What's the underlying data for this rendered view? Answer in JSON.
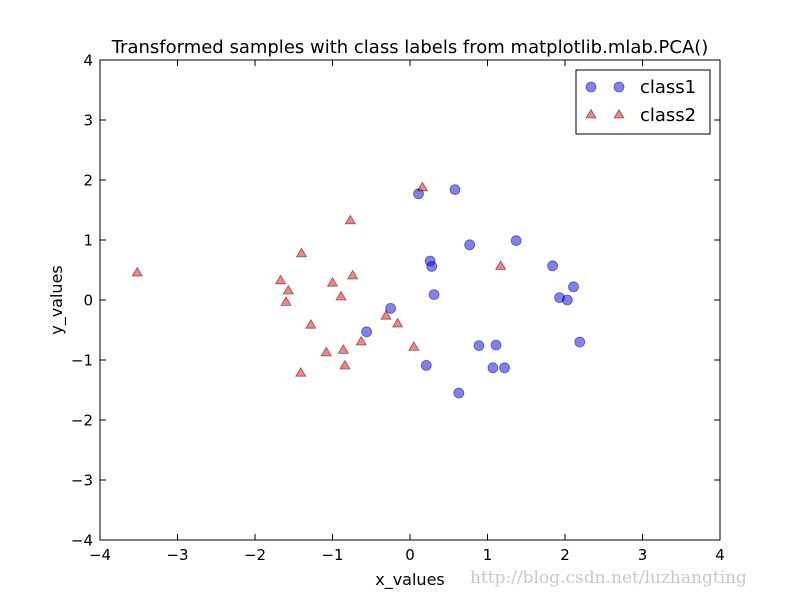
{
  "chart_data": {
    "type": "scatter",
    "title": "Transformed samples with class labels from matplotlib.mlab.PCA()",
    "xlabel": "x_values",
    "ylabel": "y_values",
    "xlim": [
      -4,
      4
    ],
    "ylim": [
      -4,
      4
    ],
    "xticks": [
      -4,
      -3,
      -2,
      -1,
      0,
      1,
      2,
      3,
      4
    ],
    "yticks": [
      -4,
      -3,
      -2,
      -1,
      0,
      1,
      2,
      3,
      4
    ],
    "tick_labels_x": [
      "−4",
      "−3",
      "−2",
      "−1",
      "0",
      "1",
      "2",
      "3",
      "4"
    ],
    "tick_labels_y": [
      "−4",
      "−3",
      "−2",
      "−1",
      "0",
      "1",
      "2",
      "3",
      "4"
    ],
    "grid": false,
    "legend_position": "top-right",
    "series": [
      {
        "name": "class1",
        "marker": "circle",
        "color": "#0000ff",
        "points": [
          [
            0.11,
            1.77
          ],
          [
            0.58,
            1.84
          ],
          [
            0.77,
            0.92
          ],
          [
            1.37,
            0.99
          ],
          [
            0.26,
            0.65
          ],
          [
            0.28,
            0.56
          ],
          [
            0.31,
            0.09
          ],
          [
            1.84,
            0.57
          ],
          [
            2.11,
            0.22
          ],
          [
            1.93,
            0.04
          ],
          [
            2.03,
            0.0
          ],
          [
            -0.25,
            -0.14
          ],
          [
            -0.56,
            -0.53
          ],
          [
            0.89,
            -0.76
          ],
          [
            1.11,
            -0.75
          ],
          [
            2.19,
            -0.7
          ],
          [
            0.21,
            -1.09
          ],
          [
            1.07,
            -1.13
          ],
          [
            1.22,
            -1.13
          ],
          [
            0.63,
            -1.55
          ]
        ]
      },
      {
        "name": "class2",
        "marker": "triangle",
        "color": "#ff0000",
        "points": [
          [
            -3.52,
            0.45
          ],
          [
            0.16,
            1.87
          ],
          [
            -0.77,
            1.32
          ],
          [
            -1.4,
            0.77
          ],
          [
            -1.67,
            0.32
          ],
          [
            -1.57,
            0.15
          ],
          [
            -1.6,
            -0.04
          ],
          [
            -0.74,
            0.4
          ],
          [
            -1.0,
            0.28
          ],
          [
            -0.89,
            0.05
          ],
          [
            -1.28,
            -0.42
          ],
          [
            -0.31,
            -0.27
          ],
          [
            -0.16,
            -0.4
          ],
          [
            -0.63,
            -0.7
          ],
          [
            -0.86,
            -0.84
          ],
          [
            -1.08,
            -0.88
          ],
          [
            0.05,
            -0.79
          ],
          [
            -0.84,
            -1.1
          ],
          [
            -1.41,
            -1.22
          ],
          [
            1.17,
            0.56
          ]
        ]
      }
    ]
  },
  "watermark": "http://blog.csdn.net/luzhangting"
}
